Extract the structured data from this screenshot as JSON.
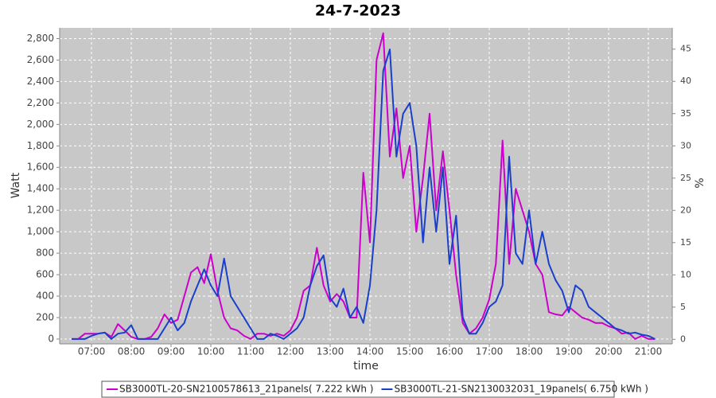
{
  "chart_data": {
    "type": "line",
    "title": "24-7-2023",
    "x_label": "time",
    "y_label": "Watt",
    "y2_label": "%",
    "grid": true,
    "legend": "bottom",
    "x": [
      390,
      400,
      410,
      420,
      430,
      440,
      450,
      460,
      470,
      480,
      490,
      500,
      510,
      520,
      530,
      540,
      550,
      560,
      570,
      580,
      590,
      600,
      610,
      620,
      630,
      640,
      650,
      660,
      670,
      680,
      690,
      700,
      710,
      720,
      730,
      740,
      750,
      760,
      770,
      780,
      790,
      800,
      810,
      820,
      830,
      840,
      850,
      860,
      870,
      880,
      890,
      900,
      910,
      920,
      930,
      940,
      950,
      960,
      970,
      980,
      990,
      1000,
      1010,
      1020,
      1030,
      1040,
      1050,
      1060,
      1070,
      1080,
      1090,
      1100,
      1110,
      1120,
      1130,
      1140,
      1150,
      1160,
      1170,
      1180,
      1190,
      1200,
      1210,
      1220,
      1230,
      1240,
      1250,
      1260,
      1270
    ],
    "xlim": [
      372,
      1296
    ],
    "xticks": [
      {
        "value": 420,
        "label": "07:00"
      },
      {
        "value": 480,
        "label": "08:00"
      },
      {
        "value": 540,
        "label": "09:00"
      },
      {
        "value": 600,
        "label": "10:00"
      },
      {
        "value": 660,
        "label": "11:00"
      },
      {
        "value": 720,
        "label": "12:00"
      },
      {
        "value": 780,
        "label": "13:00"
      },
      {
        "value": 840,
        "label": "14:00"
      },
      {
        "value": 900,
        "label": "15:00"
      },
      {
        "value": 960,
        "label": "16:00"
      },
      {
        "value": 1020,
        "label": "17:00"
      },
      {
        "value": 1080,
        "label": "18:00"
      },
      {
        "value": 1140,
        "label": "19:00"
      },
      {
        "value": 1200,
        "label": "20:00"
      },
      {
        "value": 1260,
        "label": "21:00"
      }
    ],
    "ylim": [
      -45,
      2900
    ],
    "yticks": [
      0,
      200,
      400,
      600,
      800,
      {
        "value": 1000,
        "label": "1,000"
      },
      {
        "value": 1200,
        "label": "1,200"
      },
      {
        "value": 1400,
        "label": "1,400"
      },
      {
        "value": 1600,
        "label": "1,600"
      },
      {
        "value": 1800,
        "label": "1,800"
      },
      {
        "value": 2000,
        "label": "2,000"
      },
      {
        "value": 2200,
        "label": "2,200"
      },
      {
        "value": 2400,
        "label": "2,400"
      },
      {
        "value": 2600,
        "label": "2,600"
      },
      {
        "value": 2800,
        "label": "2,800"
      }
    ],
    "y2lim": [
      -0.7,
      48.3
    ],
    "y2ticks": [
      0,
      5,
      10,
      15,
      20,
      25,
      30,
      35,
      40,
      45
    ],
    "series": [
      {
        "name": "SB3000TL-20-SN2100578613_21panels( 7.222 kWh )",
        "color": "#cc00cc",
        "values": [
          0,
          0,
          50,
          50,
          50,
          60,
          20,
          140,
          80,
          20,
          0,
          0,
          20,
          100,
          230,
          150,
          180,
          400,
          620,
          670,
          520,
          790,
          450,
          200,
          100,
          80,
          30,
          0,
          50,
          50,
          30,
          50,
          30,
          80,
          200,
          450,
          500,
          850,
          500,
          350,
          420,
          350,
          200,
          200,
          1550,
          900,
          2600,
          2850,
          1700,
          2150,
          1500,
          1800,
          1000,
          1500,
          2100,
          1200,
          1750,
          1200,
          600,
          150,
          50,
          100,
          200,
          370,
          700,
          1850,
          700,
          1400,
          1200,
          1000,
          700,
          600,
          250,
          230,
          220,
          300,
          250,
          200,
          180,
          150,
          150,
          120,
          100,
          50,
          60,
          0,
          30,
          0,
          0
        ]
      },
      {
        "name": "SB3000TL-21-SN2130032031_19panels( 6.750 kWh )",
        "color": "#1a3fcc",
        "values": [
          0,
          0,
          0,
          30,
          50,
          60,
          0,
          50,
          60,
          130,
          0,
          0,
          0,
          0,
          100,
          200,
          80,
          150,
          350,
          500,
          650,
          500,
          400,
          750,
          400,
          300,
          200,
          100,
          0,
          0,
          50,
          30,
          0,
          50,
          100,
          200,
          500,
          680,
          780,
          380,
          300,
          470,
          200,
          300,
          150,
          500,
          1200,
          2500,
          2700,
          1700,
          2100,
          2200,
          1800,
          900,
          1600,
          1000,
          1600,
          700,
          1150,
          200,
          50,
          50,
          150,
          300,
          350,
          500,
          1700,
          800,
          700,
          1200,
          700,
          1000,
          700,
          550,
          450,
          250,
          500,
          450,
          300,
          250,
          200,
          150,
          100,
          80,
          50,
          60,
          40,
          30,
          0
        ]
      }
    ]
  }
}
